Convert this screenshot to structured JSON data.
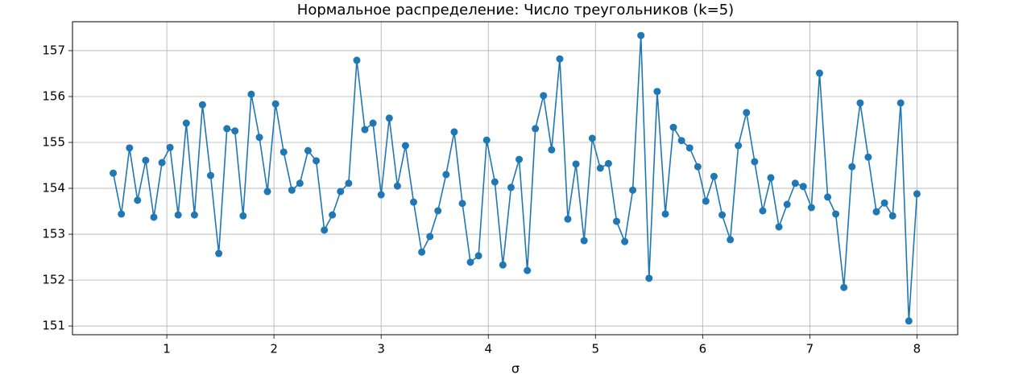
{
  "chart_data": {
    "type": "line",
    "title": "Нормальное распределение: Число треугольников (k=5)",
    "x_label": "σ",
    "x": [
      0.5,
      0.576,
      0.652,
      0.727,
      0.803,
      0.879,
      0.955,
      1.03,
      1.106,
      1.182,
      1.258,
      1.333,
      1.409,
      1.485,
      1.561,
      1.636,
      1.712,
      1.788,
      1.864,
      1.939,
      2.015,
      2.091,
      2.167,
      2.242,
      2.318,
      2.394,
      2.47,
      2.545,
      2.621,
      2.697,
      2.773,
      2.848,
      2.924,
      3.0,
      3.076,
      3.152,
      3.227,
      3.303,
      3.379,
      3.455,
      3.53,
      3.606,
      3.682,
      3.758,
      3.833,
      3.909,
      3.985,
      4.061,
      4.136,
      4.212,
      4.288,
      4.364,
      4.439,
      4.515,
      4.591,
      4.667,
      4.742,
      4.818,
      4.894,
      4.97,
      5.045,
      5.121,
      5.197,
      5.273,
      5.348,
      5.424,
      5.5,
      5.576,
      5.652,
      5.727,
      5.803,
      5.879,
      5.955,
      6.03,
      6.106,
      6.182,
      6.258,
      6.333,
      6.409,
      6.485,
      6.561,
      6.636,
      6.712,
      6.788,
      6.864,
      6.939,
      7.015,
      7.091,
      7.167,
      7.242,
      7.318,
      7.394,
      7.47,
      7.545,
      7.621,
      7.697,
      7.773,
      7.848,
      7.924,
      8.0
    ],
    "series": [
      {
        "color": "#1f77b4",
        "values": [
          154.33,
          153.44,
          154.88,
          153.74,
          154.61,
          153.37,
          154.56,
          154.89,
          153.42,
          155.42,
          153.42,
          155.82,
          154.28,
          152.58,
          155.3,
          155.25,
          153.4,
          156.05,
          155.11,
          153.93,
          155.84,
          154.79,
          153.96,
          154.11,
          154.82,
          154.6,
          153.09,
          153.42,
          153.93,
          154.11,
          156.79,
          155.28,
          155.42,
          153.86,
          155.53,
          154.05,
          154.93,
          153.7,
          152.61,
          152.95,
          153.51,
          154.3,
          155.23,
          153.67,
          152.39,
          152.53,
          155.05,
          154.14,
          152.33,
          154.02,
          154.63,
          152.21,
          155.3,
          156.02,
          154.84,
          156.82,
          153.33,
          154.53,
          152.86,
          155.09,
          154.44,
          154.54,
          153.28,
          152.84,
          153.96,
          157.33,
          152.04,
          156.11,
          153.44,
          155.33,
          155.04,
          154.88,
          154.47,
          153.72,
          154.26,
          153.42,
          152.88,
          154.93,
          155.65,
          154.58,
          153.51,
          154.23,
          153.16,
          153.65,
          154.11,
          154.04,
          153.58,
          156.51,
          153.81,
          153.44,
          151.84,
          154.47,
          155.86,
          154.68,
          153.49,
          153.68,
          153.4,
          155.86,
          151.11,
          153.88
        ]
      }
    ],
    "xlim": [
      0.12,
      8.38
    ],
    "xticks": [
      1,
      2,
      3,
      4,
      5,
      6,
      7,
      8
    ],
    "ylim": [
      150.81,
      157.63
    ],
    "yticks": [
      151,
      152,
      153,
      154,
      155,
      156,
      157
    ],
    "grid": true
  }
}
